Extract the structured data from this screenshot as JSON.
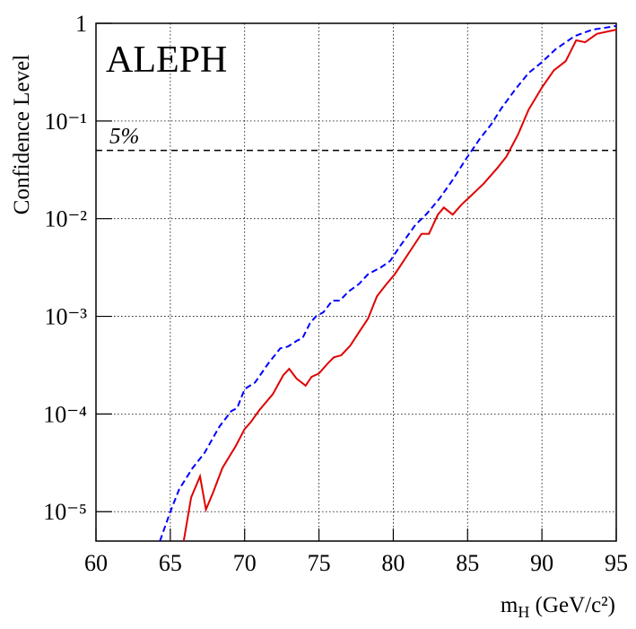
{
  "chart_data": {
    "type": "line",
    "ylabel": "Confidence Level",
    "xlabel": {
      "base": "m",
      "sub": "H",
      "rest": " (GeV/c²)"
    },
    "annotation": "ALEPH",
    "reference_line": {
      "value": 0.05,
      "label": "5%"
    },
    "log_y": true,
    "grid": true,
    "xlim": [
      60,
      95
    ],
    "xticks": [
      60,
      65,
      70,
      75,
      80,
      85,
      90,
      95
    ],
    "ylim": [
      5e-06,
      1
    ],
    "yticks": [
      {
        "value": 1e-05,
        "label": "10⁻⁵"
      },
      {
        "value": 0.0001,
        "label": "10⁻⁴"
      },
      {
        "value": 0.001,
        "label": "10⁻³"
      },
      {
        "value": 0.01,
        "label": "10⁻²"
      },
      {
        "value": 0.1,
        "label": "10⁻¹"
      },
      1
    ],
    "series": [
      {
        "color": "#0000ff",
        "dash": true,
        "x": [
          64.3,
          65,
          65.6,
          66.5,
          67.3,
          68.3,
          69.1,
          69.5,
          70,
          70.7,
          71.6,
          72.4,
          72.9,
          73.5,
          73.9,
          74.4,
          74.8,
          75.3,
          75.9,
          76.4,
          77,
          77.7,
          78.3,
          79.2,
          79.8,
          80.4,
          81,
          81.5,
          82.2,
          83.1,
          84,
          84.9,
          85.8,
          86.6,
          87.3,
          88.2,
          89.1,
          90,
          90.9,
          92.2,
          93.4,
          95
        ],
        "values": [
          5e-06,
          1e-05,
          1.7e-05,
          2.8e-05,
          4e-05,
          7.4e-05,
          0.000107,
          0.000115,
          0.00018,
          0.00021,
          0.00033,
          0.00047,
          0.00049,
          0.00056,
          0.0006,
          0.00085,
          0.001,
          0.0011,
          0.00145,
          0.00145,
          0.0018,
          0.00215,
          0.0027,
          0.0032,
          0.0037,
          0.0051,
          0.0068,
          0.0087,
          0.011,
          0.016,
          0.025,
          0.041,
          0.065,
          0.093,
          0.137,
          0.21,
          0.31,
          0.4,
          0.54,
          0.74,
          0.86,
          0.94
        ]
      },
      {
        "color": "#e00000",
        "dash": false,
        "x": [
          65.9,
          66.4,
          67,
          67.4,
          67.9,
          68.5,
          69.4,
          70,
          70.4,
          71,
          71.9,
          72.6,
          73,
          73.5,
          74.1,
          74.5,
          75,
          75.6,
          76,
          76.5,
          77.1,
          77.7,
          78.3,
          78.9,
          79.5,
          80.1,
          80.7,
          81.3,
          81.9,
          82.4,
          83,
          83.4,
          84,
          84.6,
          85.2,
          86.1,
          87,
          87.6,
          88.4,
          89.1,
          90,
          90.8,
          91.6,
          92.3,
          92.9,
          93.7,
          95
        ],
        "values": [
          5e-06,
          1.4e-05,
          2.3e-05,
          1.05e-05,
          1.6e-05,
          2.8e-05,
          4.7e-05,
          7e-05,
          8.2e-05,
          0.00011,
          0.00016,
          0.00025,
          0.00029,
          0.00023,
          0.000195,
          0.00024,
          0.00026,
          0.00033,
          0.00038,
          0.0004,
          0.0005,
          0.00069,
          0.00095,
          0.0016,
          0.0021,
          0.0027,
          0.0037,
          0.0051,
          0.007,
          0.007,
          0.011,
          0.013,
          0.011,
          0.014,
          0.017,
          0.023,
          0.033,
          0.043,
          0.073,
          0.13,
          0.22,
          0.33,
          0.41,
          0.67,
          0.64,
          0.78,
          0.86
        ]
      }
    ]
  }
}
